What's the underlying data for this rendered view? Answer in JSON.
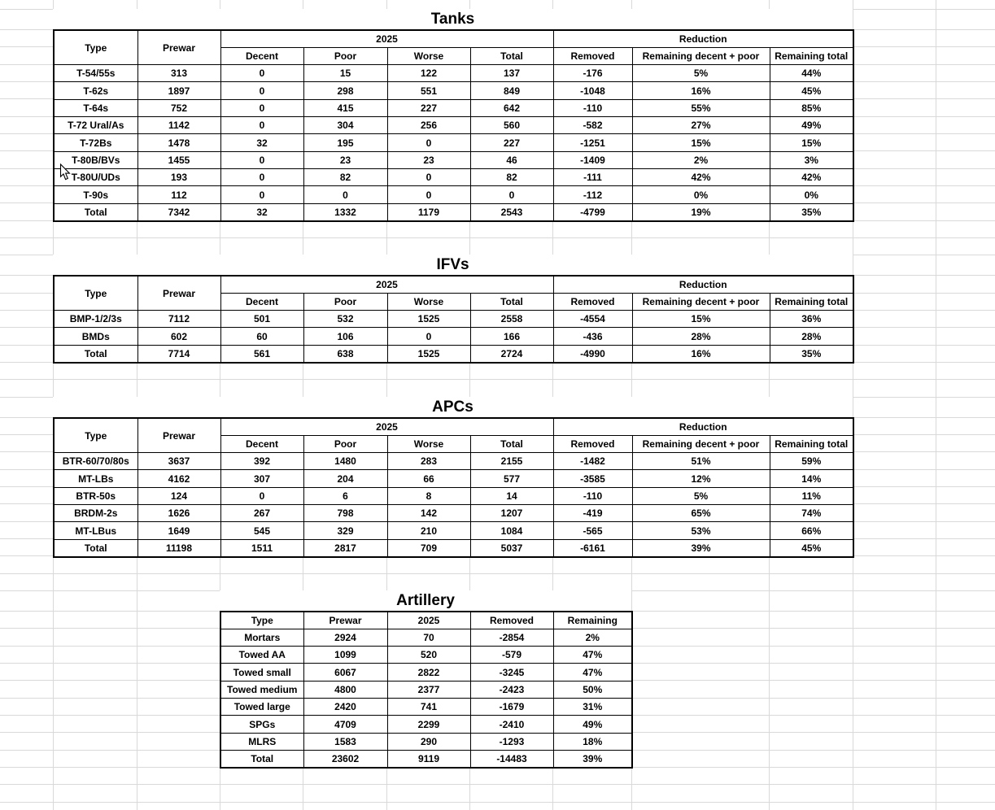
{
  "sheet": {
    "colors": {
      "background": "#ffffff",
      "grid_line": "#d9d9d9",
      "table_border": "#000000",
      "text": "#000000"
    },
    "tables": [
      {
        "id": "tanks",
        "title": "Tanks",
        "kind": "condition",
        "columns": {
          "type": "Type",
          "prewar": "Prewar",
          "group_2025": "2025",
          "group_reduction": "Reduction",
          "sub_headers": [
            "Decent",
            "Poor",
            "Worse",
            "Total",
            "Removed",
            "Remaining decent + poor",
            "Remaining total"
          ]
        },
        "rows": [
          [
            "T-54/55s",
            "313",
            "0",
            "15",
            "122",
            "137",
            "-176",
            "5%",
            "44%"
          ],
          [
            "T-62s",
            "1897",
            "0",
            "298",
            "551",
            "849",
            "-1048",
            "16%",
            "45%"
          ],
          [
            "T-64s",
            "752",
            "0",
            "415",
            "227",
            "642",
            "-110",
            "55%",
            "85%"
          ],
          [
            "T-72 Ural/As",
            "1142",
            "0",
            "304",
            "256",
            "560",
            "-582",
            "27%",
            "49%"
          ],
          [
            "T-72Bs",
            "1478",
            "32",
            "195",
            "0",
            "227",
            "-1251",
            "15%",
            "15%"
          ],
          [
            "T-80B/BVs",
            "1455",
            "0",
            "23",
            "23",
            "46",
            "-1409",
            "2%",
            "3%"
          ],
          [
            "T-80U/UDs",
            "193",
            "0",
            "82",
            "0",
            "82",
            "-111",
            "42%",
            "42%"
          ],
          [
            "T-90s",
            "112",
            "0",
            "0",
            "0",
            "0",
            "-112",
            "0%",
            "0%"
          ]
        ],
        "total_row": [
          "Total",
          "7342",
          "32",
          "1332",
          "1179",
          "2543",
          "-4799",
          "19%",
          "35%"
        ]
      },
      {
        "id": "ifvs",
        "title": "IFVs",
        "kind": "condition",
        "columns": {
          "type": "Type",
          "prewar": "Prewar",
          "group_2025": "2025",
          "group_reduction": "Reduction",
          "sub_headers": [
            "Decent",
            "Poor",
            "Worse",
            "Total",
            "Removed",
            "Remaining decent + poor",
            "Remaining total"
          ]
        },
        "rows": [
          [
            "BMP-1/2/3s",
            "7112",
            "501",
            "532",
            "1525",
            "2558",
            "-4554",
            "15%",
            "36%"
          ],
          [
            "BMDs",
            "602",
            "60",
            "106",
            "0",
            "166",
            "-436",
            "28%",
            "28%"
          ]
        ],
        "total_row": [
          "Total",
          "7714",
          "561",
          "638",
          "1525",
          "2724",
          "-4990",
          "16%",
          "35%"
        ]
      },
      {
        "id": "apcs",
        "title": "APCs",
        "kind": "condition",
        "columns": {
          "type": "Type",
          "prewar": "Prewar",
          "group_2025": "2025",
          "group_reduction": "Reduction",
          "sub_headers": [
            "Decent",
            "Poor",
            "Worse",
            "Total",
            "Removed",
            "Remaining decent + poor",
            "Remaining total"
          ]
        },
        "rows": [
          [
            "BTR-60/70/80s",
            "3637",
            "392",
            "1480",
            "283",
            "2155",
            "-1482",
            "51%",
            "59%"
          ],
          [
            "MT-LBs",
            "4162",
            "307",
            "204",
            "66",
            "577",
            "-3585",
            "12%",
            "14%"
          ],
          [
            "BTR-50s",
            "124",
            "0",
            "6",
            "8",
            "14",
            "-110",
            "5%",
            "11%"
          ],
          [
            "BRDM-2s",
            "1626",
            "267",
            "798",
            "142",
            "1207",
            "-419",
            "65%",
            "74%"
          ],
          [
            "MT-LBus",
            "1649",
            "545",
            "329",
            "210",
            "1084",
            "-565",
            "53%",
            "66%"
          ]
        ],
        "total_row": [
          "Total",
          "11198",
          "1511",
          "2817",
          "709",
          "5037",
          "-6161",
          "39%",
          "45%"
        ]
      },
      {
        "id": "artillery",
        "title": "Artillery",
        "kind": "simple",
        "columns": {
          "headers": [
            "Type",
            "Prewar",
            "2025",
            "Removed",
            "Remaining"
          ]
        },
        "rows": [
          [
            "Mortars",
            "2924",
            "70",
            "-2854",
            "2%"
          ],
          [
            "Towed AA",
            "1099",
            "520",
            "-579",
            "47%"
          ],
          [
            "Towed small",
            "6067",
            "2822",
            "-3245",
            "47%"
          ],
          [
            "Towed medium",
            "4800",
            "2377",
            "-2423",
            "50%"
          ],
          [
            "Towed large",
            "2420",
            "741",
            "-1679",
            "31%"
          ],
          [
            "SPGs",
            "4709",
            "2299",
            "-2410",
            "49%"
          ],
          [
            "MLRS",
            "1583",
            "290",
            "-1293",
            "18%"
          ],
          [
            "Total",
            "23602",
            "9119",
            "-14483",
            "39%"
          ]
        ],
        "total_row_index": 7
      }
    ],
    "cursor": {
      "shape": "arrow-pointer"
    }
  }
}
